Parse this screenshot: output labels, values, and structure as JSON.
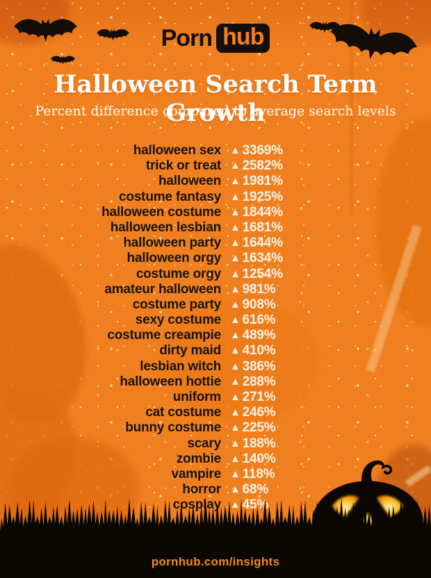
{
  "logo": {
    "text_plain": "Porn",
    "text_boxed": "hub"
  },
  "header": {
    "title": "Halloween Search Term Growth",
    "subtitle": "Percent difference compared to average search levels"
  },
  "chart_data": {
    "type": "table",
    "title": "Halloween Search Term Growth",
    "subtitle": "Percent difference compared to average search levels",
    "value_meaning": "percent difference vs average search levels",
    "marker": "▲",
    "unit": "%",
    "categories": [
      "halloween sex",
      "trick or treat",
      "halloween",
      "costume fantasy",
      "halloween costume",
      "halloween lesbian",
      "halloween party",
      "halloween orgy",
      "costume orgy",
      "amateur halloween",
      "costume party",
      "sexy costume",
      "costume creampie",
      "dirty maid",
      "lesbian witch",
      "halloween hottie",
      "uniform",
      "cat costume",
      "bunny costume",
      "scary",
      "zombie",
      "vampire",
      "horror",
      "cosplay"
    ],
    "values": [
      3369,
      2582,
      1981,
      1925,
      1844,
      1681,
      1644,
      1634,
      1254,
      981,
      908,
      616,
      489,
      410,
      386,
      288,
      271,
      246,
      225,
      188,
      140,
      118,
      68,
      45
    ]
  },
  "footer": {
    "url": "pornhub.com/insights"
  },
  "decorations": {
    "bats": "bat-silhouette",
    "pumpkin": "jack-o-lantern",
    "grass": "grass-silhouette"
  },
  "colors": {
    "background": "#F0801F",
    "background_dark": "#E06A12",
    "speckle": "#FBD9A2",
    "silhouette_black": "#0B0702",
    "term_text": "#18130e",
    "value_text": "#FDF3E7",
    "title_text": "#FFFFFF",
    "footer_link": "#F08A1E",
    "glow": "#FFCF4A"
  }
}
